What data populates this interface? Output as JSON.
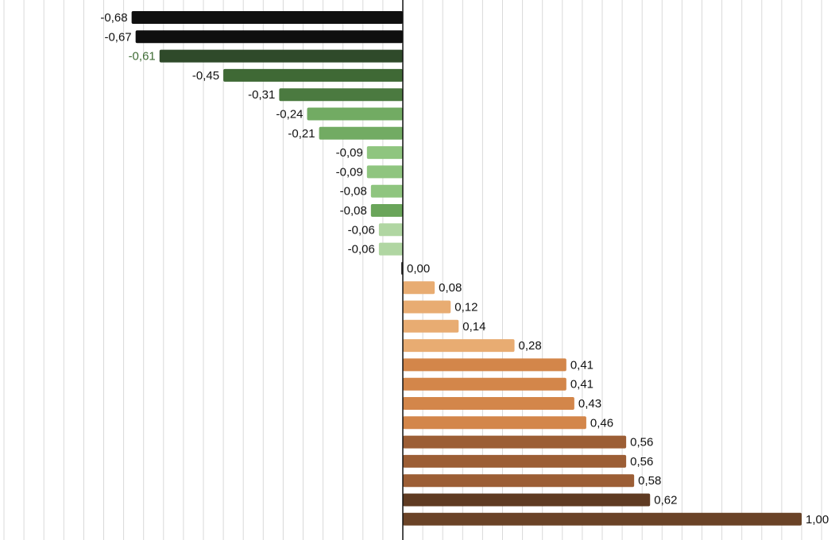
{
  "chart_data": {
    "type": "bar",
    "orientation": "horizontal",
    "title": "",
    "xlabel": "",
    "ylabel": "",
    "xlim": [
      -1.0,
      1.08
    ],
    "grid": true,
    "legend": "none",
    "values": [
      -0.68,
      -0.67,
      -0.61,
      -0.45,
      -0.31,
      -0.24,
      -0.21,
      -0.09,
      -0.09,
      -0.08,
      -0.08,
      -0.06,
      -0.06,
      0.0,
      0.08,
      0.12,
      0.14,
      0.28,
      0.41,
      0.41,
      0.43,
      0.46,
      0.56,
      0.56,
      0.58,
      0.62,
      1.0
    ],
    "value_labels": [
      "-0,68",
      "-0,67",
      "-0,61",
      "-0,45",
      "-0,31",
      "-0,24",
      "-0,21",
      "-0,09",
      "-0,09",
      "-0,08",
      "-0,08",
      "-0,06",
      "-0,06",
      "0,00",
      "0,08",
      "0,12",
      "0,14",
      "0,28",
      "0,41",
      "0,41",
      "0,43",
      "0,46",
      "0,56",
      "0,56",
      "0,58",
      "0,62",
      "1,00"
    ],
    "bar_colors": [
      "#0f0f0f",
      "#0f0f0f",
      "#2f4a2a",
      "#3f6935",
      "#4b7a40",
      "#72ab63",
      "#72ab63",
      "#8fc57f",
      "#8fc57f",
      "#8fc57f",
      "#6aa55a",
      "#b0d6a2",
      "#b0d6a2",
      "#333333",
      "#e8ac72",
      "#e8ac72",
      "#e8ac72",
      "#e8ac72",
      "#d3864a",
      "#d3864a",
      "#d3864a",
      "#d3864a",
      "#9c5e35",
      "#9c5e35",
      "#9c5e35",
      "#5f3b22",
      "#6a4327"
    ],
    "label_colors": [
      "#111111",
      "#111111",
      "#3e6b34",
      "#111111",
      "#111111",
      "#111111",
      "#111111",
      "#111111",
      "#111111",
      "#111111",
      "#111111",
      "#111111",
      "#111111",
      "#111111",
      "#111111",
      "#111111",
      "#111111",
      "#111111",
      "#111111",
      "#111111",
      "#111111",
      "#111111",
      "#111111",
      "#111111",
      "#111111",
      "#111111",
      "#111111"
    ],
    "gridline_color": "#d9d9d9",
    "axis_color": "#111111"
  }
}
